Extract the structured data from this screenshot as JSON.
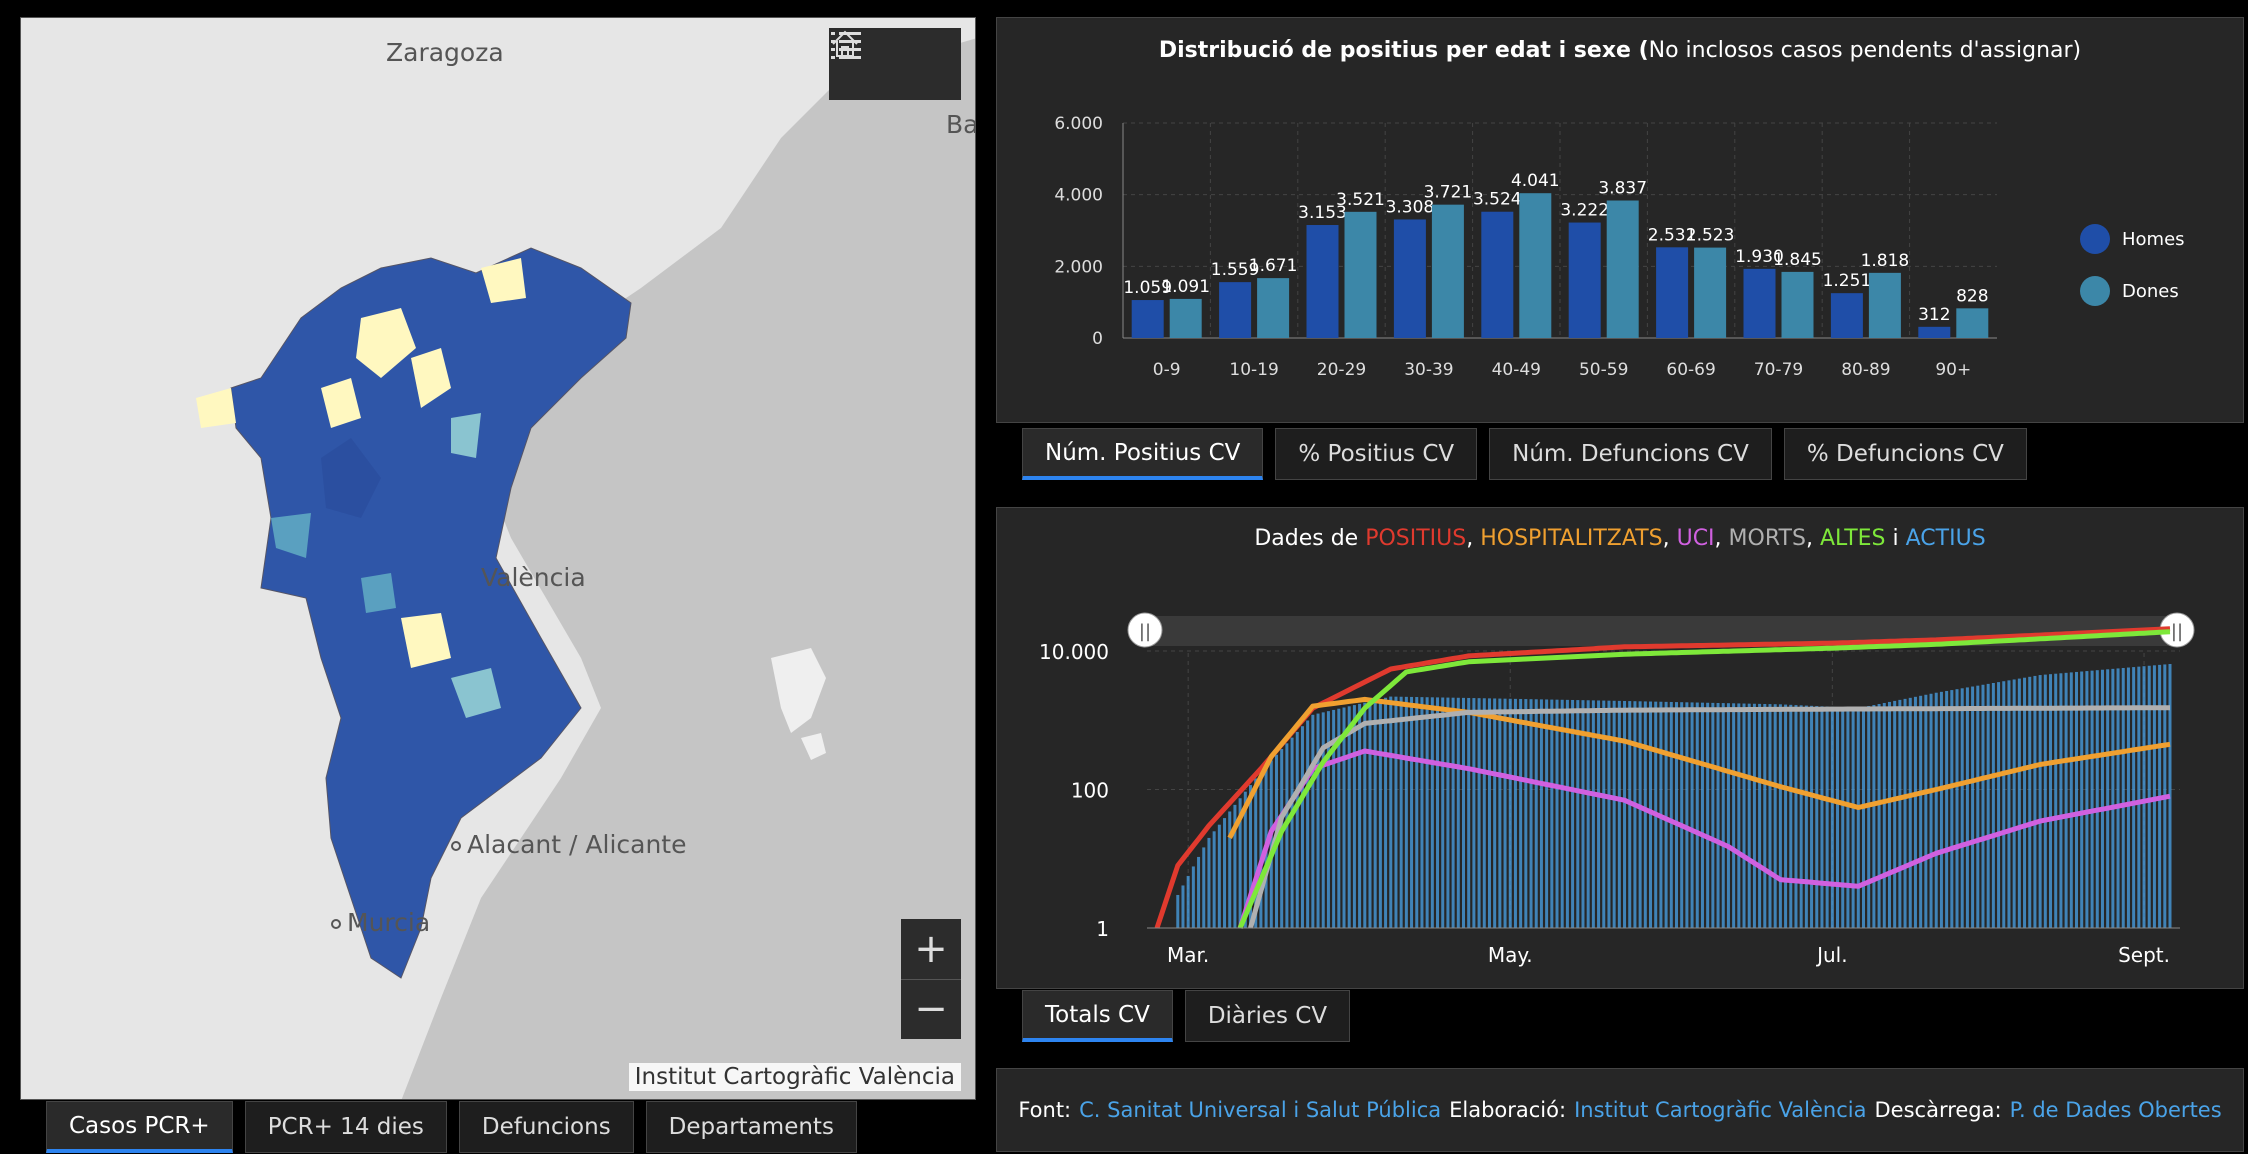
{
  "map": {
    "cities": [
      "Zaragoza",
      "València",
      "Alacant / Alicante",
      "Murcia",
      "Ba"
    ],
    "attribution": "Institut Cartogràfic València",
    "zoom_in": "+",
    "zoom_out": "−"
  },
  "map_tabs": [
    "Casos PCR+",
    "PCR+ 14 dies",
    "Defuncions",
    "Departaments"
  ],
  "age_chart": {
    "title_bold": "Distribució de positius per edat i sexe (",
    "title_rest": "No inclosos casos pendents d'assignar)",
    "legend": [
      "Homes",
      "Dones"
    ],
    "colors": {
      "Homes": "#1f4ea8",
      "Dones": "#3c87a8"
    }
  },
  "age_tabs": [
    "Núm. Positius CV",
    "% Positius CV",
    "Núm. Defuncions CV",
    "% Defuncions CV"
  ],
  "time_chart": {
    "title_prefix": "Dades de ",
    "title_parts": [
      {
        "text": "POSITIUS",
        "color": "#e03a2e"
      },
      {
        "text": ", ",
        "color": "#ffffff"
      },
      {
        "text": "HOSPITALITZATS",
        "color": "#f0a030"
      },
      {
        "text": ", ",
        "color": "#ffffff"
      },
      {
        "text": "UCI",
        "color": "#d060e0"
      },
      {
        "text": ", ",
        "color": "#ffffff"
      },
      {
        "text": "MORTS",
        "color": "#b0b0b0"
      },
      {
        "text": ", ",
        "color": "#ffffff"
      },
      {
        "text": "ALTES",
        "color": "#7ee83a"
      },
      {
        "text": " i ",
        "color": "#ffffff"
      },
      {
        "text": "ACTIUS",
        "color": "#4aa3e8"
      }
    ],
    "y_ticks": [
      "10.000",
      "100",
      "1"
    ],
    "x_ticks": [
      "Mar.",
      "May.",
      "Jul.",
      "Sept."
    ],
    "slider_handle": "||"
  },
  "time_tabs": [
    "Totals CV",
    "Diàries CV"
  ],
  "footer": {
    "font_label": "Font:",
    "font_link": "C. Sanitat Universal i Salut Pública",
    "elab_label": "Elaboració:",
    "elab_link": "Institut Cartogràfic València",
    "desc_label": "Descàrrega:",
    "desc_link": "P. de Dades Obertes"
  },
  "chart_data": [
    {
      "type": "bar",
      "title": "Distribució de positius per edat i sexe (No inclosos casos pendents d'assignar)",
      "categories": [
        "0-9",
        "10-19",
        "20-29",
        "30-39",
        "40-49",
        "50-59",
        "60-69",
        "70-79",
        "80-89",
        "90+"
      ],
      "series": [
        {
          "name": "Homes",
          "values": [
            1059,
            1559,
            3153,
            3308,
            3524,
            3222,
            2531,
            1930,
            1251,
            312
          ],
          "labels": [
            "1.059",
            "1.559",
            "3.153",
            "3.308",
            "3.524",
            "3.222",
            "2.531",
            "1.930",
            "1.251",
            "312"
          ]
        },
        {
          "name": "Dones",
          "values": [
            1091,
            1671,
            3521,
            3721,
            4041,
            3837,
            2523,
            1845,
            1818,
            828
          ],
          "labels": [
            "1.091",
            "1.671",
            "3.521",
            "3.721",
            "4.041",
            "3.837",
            "2.523",
            "1.845",
            "1.818",
            "828"
          ]
        }
      ],
      "y_ticks": [
        "0",
        "2.000",
        "4.000",
        "6.000"
      ],
      "ylim": [
        0,
        6000
      ],
      "grid": true,
      "legend": "right"
    },
    {
      "type": "line",
      "title": "Dades de POSITIUS, HOSPITALITZATS, UCI, MORTS, ALTES i ACTIUS",
      "y_scale": "log",
      "ylim": [
        1,
        30000
      ],
      "x_ticks": [
        "Mar.",
        "May.",
        "Jul.",
        "Sept."
      ],
      "series": [
        {
          "name": "POSITIUS",
          "color": "#e03a2e",
          "points": [
            [
              0,
              1
            ],
            [
              4,
              8
            ],
            [
              10,
              30
            ],
            [
              20,
              200
            ],
            [
              30,
              1500
            ],
            [
              45,
              5500
            ],
            [
              60,
              8500
            ],
            [
              90,
              11500
            ],
            [
              130,
              13000
            ],
            [
              150,
              14500
            ],
            [
              170,
              17000
            ],
            [
              195,
              21000
            ]
          ]
        },
        {
          "name": "HOSPITALITZATS",
          "color": "#f0a030",
          "points": [
            [
              14,
              20
            ],
            [
              22,
              300
            ],
            [
              30,
              1600
            ],
            [
              40,
              2000
            ],
            [
              60,
              1300
            ],
            [
              90,
              500
            ],
            [
              120,
              110
            ],
            [
              135,
              55
            ],
            [
              150,
              100
            ],
            [
              170,
              230
            ],
            [
              195,
              450
            ]
          ]
        },
        {
          "name": "UCI",
          "color": "#d060e0",
          "points": [
            [
              16,
              1
            ],
            [
              22,
              25
            ],
            [
              30,
              200
            ],
            [
              40,
              360
            ],
            [
              60,
              200
            ],
            [
              90,
              70
            ],
            [
              110,
              15
            ],
            [
              120,
              5
            ],
            [
              135,
              4
            ],
            [
              150,
              12
            ],
            [
              170,
              35
            ],
            [
              195,
              80
            ]
          ]
        },
        {
          "name": "MORTS",
          "color": "#b0b0b0",
          "points": [
            [
              18,
              1
            ],
            [
              24,
              40
            ],
            [
              32,
              400
            ],
            [
              40,
              900
            ],
            [
              60,
              1300
            ],
            [
              90,
              1400
            ],
            [
              130,
              1450
            ],
            [
              195,
              1520
            ]
          ]
        },
        {
          "name": "ALTES",
          "color": "#7ee83a",
          "points": [
            [
              16,
              1
            ],
            [
              24,
              25
            ],
            [
              32,
              250
            ],
            [
              40,
              1500
            ],
            [
              48,
              5000
            ],
            [
              60,
              7000
            ],
            [
              90,
              9000
            ],
            [
              130,
              11000
            ],
            [
              150,
              12500
            ],
            [
              170,
              15000
            ],
            [
              195,
              19000
            ]
          ]
        },
        {
          "name": "ACTIUS",
          "color": "#4aa3e8",
          "type": "bar",
          "points": [
            [
              4,
              3
            ],
            [
              10,
              20
            ],
            [
              20,
              180
            ],
            [
              30,
              1200
            ],
            [
              45,
              2200
            ],
            [
              60,
              2100
            ],
            [
              90,
              1900
            ],
            [
              120,
              1700
            ],
            [
              135,
              1500
            ],
            [
              150,
              2500
            ],
            [
              170,
              4500
            ],
            [
              195,
              6500
            ]
          ]
        }
      ]
    }
  ]
}
